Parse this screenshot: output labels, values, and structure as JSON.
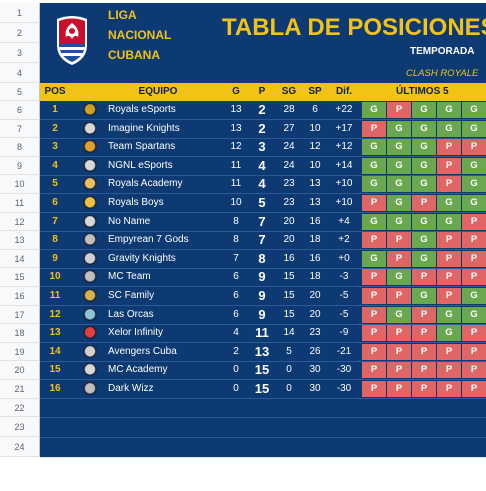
{
  "row_numbers": [
    "1",
    "2",
    "3",
    "4",
    "5",
    "6",
    "7",
    "8",
    "9",
    "10",
    "11",
    "12",
    "13",
    "14",
    "15",
    "16",
    "17",
    "18",
    "19",
    "20",
    "21",
    "22",
    "23",
    "24"
  ],
  "league": {
    "line1": "LIGA",
    "line2": "NACIONAL",
    "line3": "CUBANA"
  },
  "title": "TABLA DE POSICIONES",
  "season_label": "TEMPORADA",
  "subtitle": "CLASH ROYALE",
  "headers": {
    "pos": "POS",
    "team": "EQUIPO",
    "g": "G",
    "p": "P",
    "sg": "SG",
    "sp": "SP",
    "dif": "Dif.",
    "last5": "ÚLTIMOS 5"
  },
  "colors": {
    "navy": "#0d3a73",
    "gold": "#f2c315",
    "win": "#6aa84f",
    "loss": "#e06666"
  },
  "standings": [
    {
      "pos": "1",
      "team": "Royals eSports",
      "g": "13",
      "p": "2",
      "sg": "28",
      "sp": "6",
      "dif": "+22",
      "last5": [
        "G",
        "P",
        "G",
        "G",
        "G"
      ]
    },
    {
      "pos": "2",
      "team": "Imagine Knights",
      "g": "13",
      "p": "2",
      "sg": "27",
      "sp": "10",
      "dif": "+17",
      "last5": [
        "P",
        "G",
        "G",
        "G",
        "G"
      ]
    },
    {
      "pos": "3",
      "team": "Team Spartans",
      "g": "12",
      "p": "3",
      "sg": "24",
      "sp": "12",
      "dif": "+12",
      "last5": [
        "G",
        "G",
        "G",
        "P",
        "P"
      ]
    },
    {
      "pos": "4",
      "team": "NGNL eSports",
      "g": "11",
      "p": "4",
      "sg": "24",
      "sp": "10",
      "dif": "+14",
      "last5": [
        "G",
        "G",
        "G",
        "P",
        "G"
      ]
    },
    {
      "pos": "5",
      "team": "Royals Academy",
      "g": "11",
      "p": "4",
      "sg": "23",
      "sp": "13",
      "dif": "+10",
      "last5": [
        "G",
        "G",
        "G",
        "P",
        "G"
      ]
    },
    {
      "pos": "6",
      "team": "Royals Boys",
      "g": "10",
      "p": "5",
      "sg": "23",
      "sp": "13",
      "dif": "+10",
      "last5": [
        "P",
        "G",
        "P",
        "G",
        "G"
      ]
    },
    {
      "pos": "7",
      "team": "No Name",
      "g": "8",
      "p": "7",
      "sg": "20",
      "sp": "16",
      "dif": "+4",
      "last5": [
        "G",
        "G",
        "G",
        "G",
        "P"
      ]
    },
    {
      "pos": "8",
      "team": "Empyrean 7 Gods",
      "g": "8",
      "p": "7",
      "sg": "20",
      "sp": "18",
      "dif": "+2",
      "last5": [
        "P",
        "P",
        "G",
        "P",
        "P"
      ]
    },
    {
      "pos": "9",
      "team": "Gravity Knights",
      "g": "7",
      "p": "8",
      "sg": "16",
      "sp": "16",
      "dif": "+0",
      "last5": [
        "G",
        "P",
        "G",
        "P",
        "P"
      ]
    },
    {
      "pos": "10",
      "team": "MC Team",
      "g": "6",
      "p": "9",
      "sg": "15",
      "sp": "18",
      "dif": "-3",
      "last5": [
        "P",
        "G",
        "P",
        "P",
        "P"
      ]
    },
    {
      "pos": "11",
      "team": "SC Family",
      "g": "6",
      "p": "9",
      "sg": "15",
      "sp": "20",
      "dif": "-5",
      "last5": [
        "P",
        "P",
        "G",
        "P",
        "G"
      ]
    },
    {
      "pos": "12",
      "team": "Las Orcas",
      "g": "6",
      "p": "9",
      "sg": "15",
      "sp": "20",
      "dif": "-5",
      "last5": [
        "P",
        "G",
        "P",
        "G",
        "G"
      ]
    },
    {
      "pos": "13",
      "team": "Xelor Infinity",
      "g": "4",
      "p": "11",
      "sg": "14",
      "sp": "23",
      "dif": "-9",
      "last5": [
        "P",
        "P",
        "P",
        "G",
        "P"
      ]
    },
    {
      "pos": "14",
      "team": "Avengers Cuba",
      "g": "2",
      "p": "13",
      "sg": "5",
      "sp": "26",
      "dif": "-21",
      "last5": [
        "P",
        "P",
        "P",
        "P",
        "P"
      ]
    },
    {
      "pos": "15",
      "team": "MC Academy",
      "g": "0",
      "p": "15",
      "sg": "0",
      "sp": "30",
      "dif": "-30",
      "last5": [
        "P",
        "P",
        "P",
        "P",
        "P"
      ]
    },
    {
      "pos": "16",
      "team": "Dark Wizz",
      "g": "0",
      "p": "15",
      "sg": "0",
      "sp": "30",
      "dif": "-30",
      "last5": [
        "P",
        "P",
        "P",
        "P",
        "P"
      ]
    }
  ]
}
